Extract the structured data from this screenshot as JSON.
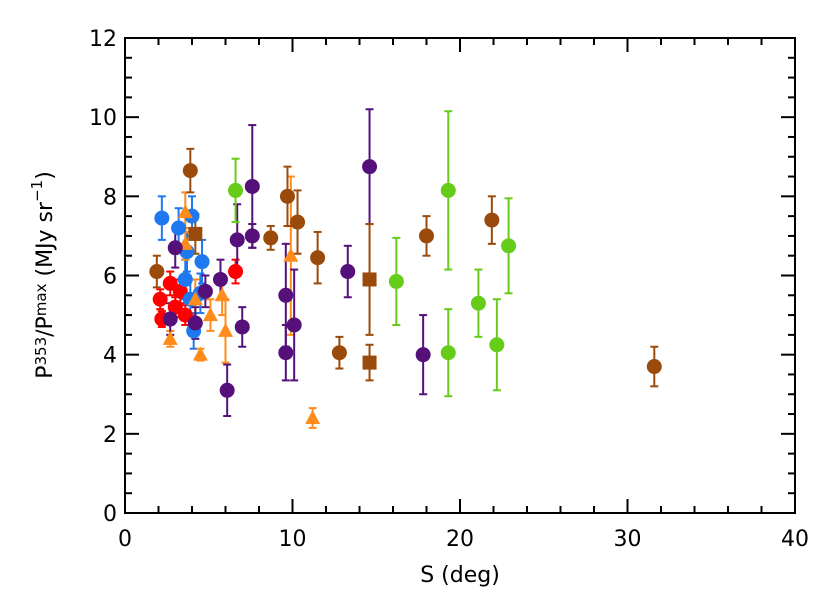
{
  "chart_data": {
    "type": "scatter",
    "xlabel": "S (deg)",
    "ylabel": [
      "P",
      "353",
      "/P",
      "max",
      " (MJy sr",
      "−1",
      ")"
    ],
    "xlim": [
      0,
      40
    ],
    "xticks": [
      0,
      10,
      20,
      30,
      40
    ],
    "xminor": 5,
    "ylim": [
      0,
      12
    ],
    "yticks": [
      0,
      2,
      4,
      6,
      8,
      10,
      12
    ],
    "yminor": 4,
    "series": [
      {
        "color": "#ff0000",
        "marker": "circle",
        "x": [
          2.1,
          2.2,
          2.7,
          3.0,
          3.3,
          3.6,
          6.6
        ],
        "values": [
          5.4,
          4.9,
          5.8,
          5.2,
          5.6,
          5.0,
          6.1
        ],
        "errors": [
          0.25,
          0.2,
          0.3,
          0.25,
          0.3,
          0.25,
          0.3
        ]
      },
      {
        "color": "#1e78f0",
        "marker": "circle",
        "x": [
          2.2,
          3.2,
          4.0,
          3.7,
          3.6,
          4.6,
          3.9,
          4.1,
          4.5
        ],
        "values": [
          7.45,
          7.2,
          7.5,
          6.6,
          5.9,
          6.35,
          5.4,
          4.6,
          5.55
        ],
        "errors": [
          0.55,
          0.5,
          0.5,
          0.5,
          0.5,
          0.55,
          0.5,
          0.45,
          0.5
        ]
      },
      {
        "color": "#ff8c1a",
        "marker": "triangle",
        "x": [
          3.6,
          3.6,
          2.7,
          4.5,
          4.2,
          5.1,
          5.8,
          6.0,
          9.9,
          11.2
        ],
        "values": [
          7.6,
          6.8,
          4.4,
          4.0,
          5.4,
          5.0,
          5.5,
          4.6,
          6.5,
          2.4
        ],
        "errors": [
          0.5,
          0.4,
          0.2,
          0.15,
          0.5,
          0.4,
          0.5,
          0.8,
          2.0,
          0.25
        ]
      },
      {
        "color": "#55107a",
        "marker": "circle",
        "x": [
          3.0,
          2.7,
          4.2,
          4.8,
          5.7,
          6.1,
          6.7,
          7.0,
          7.6,
          7.6,
          9.6,
          9.6,
          10.1,
          13.3,
          14.6,
          17.8
        ],
        "values": [
          6.7,
          4.9,
          4.8,
          5.6,
          5.9,
          3.1,
          6.9,
          4.7,
          8.25,
          7.0,
          5.5,
          4.05,
          4.75,
          6.1,
          8.75,
          4.0
        ],
        "errors": [
          0.5,
          0.4,
          0.4,
          0.4,
          0.5,
          0.65,
          0.9,
          0.5,
          1.55,
          0.3,
          1.3,
          0.7,
          1.4,
          0.65,
          1.45,
          1.0
        ]
      },
      {
        "color": "#9a4a0a",
        "marker": "circle",
        "x": [
          1.9,
          3.9,
          8.7,
          9.7,
          10.3,
          11.5,
          12.8,
          18.0,
          21.9,
          31.6
        ],
        "values": [
          6.1,
          8.65,
          6.95,
          8.0,
          7.35,
          6.45,
          4.05,
          7.0,
          7.4,
          3.7
        ],
        "errors": [
          0.4,
          0.55,
          0.3,
          0.75,
          0.8,
          0.65,
          0.4,
          0.5,
          0.6,
          0.5
        ]
      },
      {
        "color": "#9a4a0a",
        "marker": "square",
        "x": [
          4.2,
          14.6,
          14.6
        ],
        "values": [
          7.05,
          5.9,
          3.8
        ],
        "errors": [
          0.5,
          1.4,
          0.45
        ]
      },
      {
        "color": "#66cc1a",
        "marker": "circle",
        "x": [
          6.6,
          16.2,
          19.3,
          19.3,
          21.1,
          22.2,
          22.9
        ],
        "values": [
          8.15,
          5.85,
          8.15,
          4.05,
          5.3,
          4.25,
          6.75
        ],
        "errors": [
          0.8,
          1.1,
          2.0,
          1.1,
          0.85,
          1.15,
          1.2
        ]
      }
    ]
  }
}
